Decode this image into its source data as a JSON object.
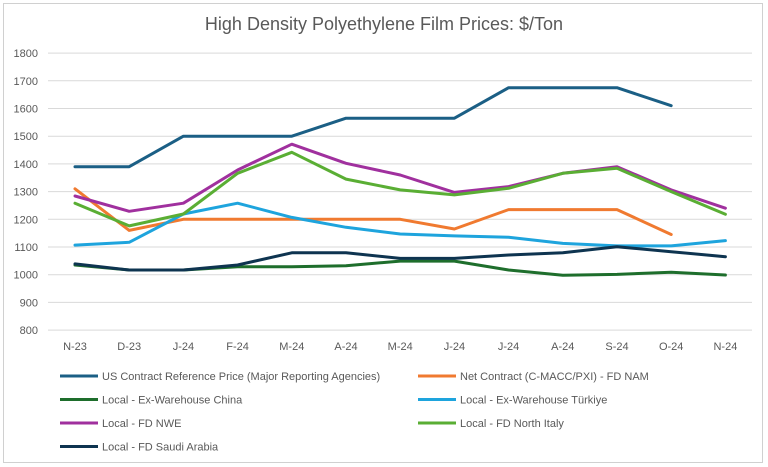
{
  "chart_data": {
    "type": "line",
    "title": "High Density Polyethylene Film Prices: $/Ton",
    "categories": [
      "N-23",
      "D-23",
      "J-24",
      "F-24",
      "M-24",
      "A-24",
      "M-24",
      "J-24",
      "J-24",
      "A-24",
      "S-24",
      "O-24",
      "N-24"
    ],
    "ylim": [
      800,
      1800
    ],
    "yticks": [
      800,
      900,
      1000,
      1100,
      1200,
      1300,
      1400,
      1500,
      1600,
      1700,
      1800
    ],
    "grid": true,
    "legend_position": "bottom",
    "series": [
      {
        "name": "US Contract Reference Price (Major Reporting Agencies)",
        "color": "#1b5f85",
        "values": [
          1390,
          1390,
          1500,
          1500,
          1500,
          1565,
          1565,
          1565,
          1675,
          1675,
          1675,
          1610,
          null
        ]
      },
      {
        "name": "Net Contract (C-MACC/PXI) - FD NAM",
        "color": "#f07a30",
        "values": [
          1310,
          1160,
          1200,
          1200,
          1200,
          1200,
          1200,
          1165,
          1235,
          1235,
          1235,
          1145,
          null
        ]
      },
      {
        "name": "Local - Ex-Warehouse China",
        "color": "#1e6e2c",
        "values": [
          1035,
          1017,
          1017,
          1029,
          1029,
          1032,
          1049,
          1049,
          1017,
          998,
          1001,
          1009,
          999
        ]
      },
      {
        "name": "Local - Ex-Warehouse Türkiye",
        "color": "#1ea4dd",
        "values": [
          1107,
          1117,
          1219,
          1258,
          1207,
          1171,
          1147,
          1140,
          1135,
          1113,
          1104,
          1104,
          1123
        ]
      },
      {
        "name": "Local - FD NWE",
        "color": "#a0309e",
        "values": [
          1284,
          1229,
          1258,
          1378,
          1471,
          1402,
          1360,
          1297,
          1318,
          1366,
          1390,
          1306,
          1240
        ]
      },
      {
        "name": "Local - FD North Italy",
        "color": "#5aae34",
        "values": [
          1258,
          1176,
          1219,
          1366,
          1442,
          1345,
          1306,
          1288,
          1312,
          1366,
          1384,
          1300,
          1218
        ]
      },
      {
        "name": "Local - FD Saudi Arabia",
        "color": "#0e3450",
        "values": [
          1039,
          1017,
          1017,
          1035,
          1079,
          1079,
          1059,
          1059,
          1071,
          1079,
          1101,
          1083,
          1065
        ]
      }
    ]
  }
}
